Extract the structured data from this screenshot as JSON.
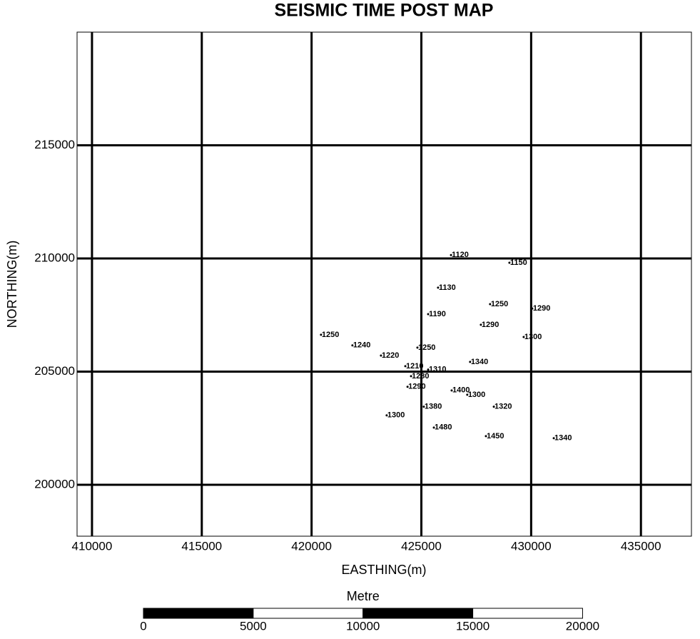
{
  "chart_data": {
    "type": "scatter",
    "title": "SEISMIC TIME POST  MAP",
    "x_label": "EASTHING(m)",
    "y_label": "NORTHING(m)",
    "x": [
      426350,
      429010,
      425760,
      428130,
      430050,
      425310,
      427710,
      429660,
      420430,
      421860,
      424820,
      423160,
      427220,
      424270,
      425310,
      424530,
      424370,
      426380,
      427090,
      425110,
      428300,
      423420,
      425570,
      427940,
      431030
    ],
    "y": [
      210150,
      209810,
      208710,
      207980,
      207790,
      207540,
      207070,
      206530,
      206630,
      206160,
      206060,
      205710,
      205430,
      205240,
      205090,
      204800,
      204330,
      204170,
      203980,
      203450,
      203450,
      203070,
      202530,
      202150,
      202060
    ],
    "values": [
      1120,
      1150,
      1130,
      1250,
      1290,
      1190,
      1290,
      1300,
      1250,
      1240,
      1250,
      1220,
      1340,
      1210,
      1310,
      1280,
      1290,
      1400,
      1300,
      1380,
      1320,
      1300,
      1480,
      1450,
      1340
    ],
    "color": "#000000",
    "xlim": [
      409320,
      437300
    ],
    "ylim": [
      197730,
      220000
    ],
    "xticks": [
      410000,
      415000,
      420000,
      425000,
      430000,
      435000
    ],
    "yticks": [
      200000,
      205000,
      210000,
      215000
    ],
    "grid": true,
    "scale_bar": {
      "label": "Metre",
      "ticks": [
        0,
        5000,
        10000,
        15000,
        20000
      ]
    }
  }
}
